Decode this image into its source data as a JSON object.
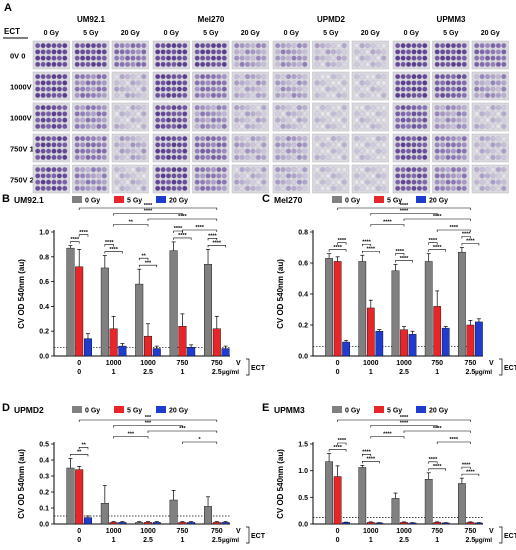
{
  "panel_a": {
    "letter": "A",
    "ect_label": "ECT",
    "rows": [
      "0V 0",
      "1000V 1",
      "1000V 2.5",
      "750V 1",
      "750V 2.5"
    ],
    "cell_lines": [
      "UM92.1",
      "Mel270",
      "UPMD2",
      "UPMM3"
    ],
    "doses": [
      "0 Gy",
      "5 Gy",
      "20 Gy"
    ],
    "plate_colors": {
      "stain_dark": "#5b3d8f",
      "stain_mid": "#8f78b8",
      "stain_light": "#c9c1d8",
      "plate_bg": "#d9d9de",
      "well_empty": "#e6e6ea"
    },
    "stain_intensity": [
      [
        [
          0.95,
          0.9,
          0.55
        ],
        [
          0.95,
          0.92,
          0.35
        ],
        [
          0.35,
          0.2,
          0.15
        ],
        [
          0.95,
          0.9,
          0.6
        ]
      ],
      [
        [
          0.9,
          0.5,
          0.2
        ],
        [
          0.92,
          0.55,
          0.25
        ],
        [
          0.3,
          0.1,
          0.1
        ],
        [
          0.92,
          0.75,
          0.35
        ]
      ],
      [
        [
          0.85,
          0.45,
          0.15
        ],
        [
          0.85,
          0.4,
          0.2
        ],
        [
          0.2,
          0.1,
          0.1
        ],
        [
          0.7,
          0.35,
          0.15
        ]
      ],
      [
        [
          0.9,
          0.55,
          0.25
        ],
        [
          0.9,
          0.6,
          0.25
        ],
        [
          0.3,
          0.12,
          0.1
        ],
        [
          0.85,
          0.5,
          0.2
        ]
      ],
      [
        [
          0.85,
          0.4,
          0.15
        ],
        [
          0.9,
          0.5,
          0.2
        ],
        [
          0.25,
          0.1,
          0.1
        ],
        [
          0.8,
          0.45,
          0.2
        ]
      ]
    ]
  },
  "legend": {
    "items": [
      "0 Gy",
      "5 Gy",
      "20 Gy"
    ]
  },
  "colors": {
    "g0": "#808080",
    "g5": "#e8262a",
    "g20": "#1f3bd0"
  },
  "axis": {
    "ylabel": "CV OD 540nm (au)",
    "x_top": [
      "0",
      "1000",
      "1000",
      "750",
      "750"
    ],
    "x_bottom": [
      "0",
      "1",
      "2.5",
      "1",
      "2.5"
    ],
    "unit_top": "V",
    "unit_bottom": "µg/ml",
    "ect_label": "ECT"
  },
  "chart_data": [
    {
      "letter": "B",
      "title": "UM92.1",
      "type": "bar",
      "categories": [
        "0 V / 0 µg/ml",
        "1000 V / 1 µg/ml",
        "1000 V / 2.5 µg/ml",
        "750 V / 1 µg/ml",
        "750 V / 2.5 µg/ml"
      ],
      "ylim": [
        0,
        1.0
      ],
      "yticks": [
        "0.0",
        "0.2",
        "0.4",
        "0.6",
        "0.8",
        "1.0"
      ],
      "tick_values": [
        0,
        0.2,
        0.4,
        0.6,
        0.8,
        1.0
      ],
      "threshold": 0.07,
      "series": [
        {
          "name": "0 Gy",
          "values": [
            0.87,
            0.71,
            0.58,
            0.85,
            0.74
          ],
          "errors": [
            0.02,
            0.1,
            0.12,
            0.07,
            0.12
          ]
        },
        {
          "name": "5 Gy",
          "values": [
            0.72,
            0.22,
            0.16,
            0.24,
            0.22
          ],
          "errors": [
            0.14,
            0.1,
            0.1,
            0.1,
            0.1
          ]
        },
        {
          "name": "20 Gy",
          "values": [
            0.14,
            0.08,
            0.06,
            0.07,
            0.06
          ],
          "errors": [
            0.04,
            0.02,
            0.02,
            0.02,
            0.02
          ]
        }
      ],
      "sig_top": [
        {
          "x1": 0,
          "x2": 4,
          "label": "****"
        },
        {
          "x1": 1,
          "x2": 3,
          "label": "****"
        },
        {
          "x1": 2,
          "x2": 4,
          "label": "****"
        },
        {
          "x1": 1,
          "x2": 2,
          "label": "**"
        },
        {
          "x1": 3,
          "x2": 4,
          "label": "****"
        }
      ],
      "sig_local": [
        {
          "group": 0,
          "a": 0,
          "b": 1,
          "label": "****"
        },
        {
          "group": 0,
          "a": 1,
          "b": 2,
          "label": "****"
        },
        {
          "group": 1,
          "a": 0,
          "b": 2,
          "label": "****"
        },
        {
          "group": 1,
          "a": 0,
          "b": 1,
          "label": "****"
        },
        {
          "group": 2,
          "a": 0,
          "b": 2,
          "label": "***"
        },
        {
          "group": 2,
          "a": 0,
          "b": 1,
          "label": "**"
        },
        {
          "group": 3,
          "a": 0,
          "b": 2,
          "label": "****"
        },
        {
          "group": 3,
          "a": 0,
          "b": 1,
          "label": "****"
        },
        {
          "group": 4,
          "a": 0,
          "b": 2,
          "label": "****"
        },
        {
          "group": 4,
          "a": 0,
          "b": 1,
          "label": "****"
        }
      ]
    },
    {
      "letter": "C",
      "title": "Mel270",
      "type": "bar",
      "categories": [
        "0 V / 0 µg/ml",
        "1000 V / 1 µg/ml",
        "1000 V / 2.5 µg/ml",
        "750 V / 1 µg/ml",
        "750 V / 2.5 µg/ml"
      ],
      "ylim": [
        0,
        0.8
      ],
      "yticks": [
        "0.0",
        "0.2",
        "0.4",
        "0.6",
        "0.8"
      ],
      "tick_values": [
        0,
        0.2,
        0.4,
        0.6,
        0.8
      ],
      "threshold": 0.06,
      "series": [
        {
          "name": "0 Gy",
          "values": [
            0.63,
            0.61,
            0.55,
            0.61,
            0.67
          ],
          "errors": [
            0.03,
            0.04,
            0.04,
            0.05,
            0.03
          ]
        },
        {
          "name": "5 Gy",
          "values": [
            0.61,
            0.31,
            0.17,
            0.32,
            0.2
          ],
          "errors": [
            0.03,
            0.05,
            0.02,
            0.1,
            0.03
          ]
        },
        {
          "name": "20 Gy",
          "values": [
            0.09,
            0.16,
            0.14,
            0.18,
            0.22
          ],
          "errors": [
            0.01,
            0.01,
            0.02,
            0.01,
            0.02
          ]
        }
      ],
      "sig_top": [
        {
          "x1": 0,
          "x2": 4,
          "label": "****"
        },
        {
          "x1": 1,
          "x2": 3,
          "label": "****"
        },
        {
          "x1": 2,
          "x2": 4,
          "label": "****"
        },
        {
          "x1": 1,
          "x2": 2,
          "label": "****"
        },
        {
          "x1": 3,
          "x2": 4,
          "label": "****"
        }
      ],
      "sig_local": [
        {
          "group": 0,
          "a": 0,
          "b": 2,
          "label": "****"
        },
        {
          "group": 0,
          "a": 1,
          "b": 2,
          "label": "****"
        },
        {
          "group": 1,
          "a": 0,
          "b": 2,
          "label": "****"
        },
        {
          "group": 1,
          "a": 0,
          "b": 1,
          "label": "****"
        },
        {
          "group": 2,
          "a": 0,
          "b": 2,
          "label": "****"
        },
        {
          "group": 2,
          "a": 0,
          "b": 1,
          "label": "****"
        },
        {
          "group": 3,
          "a": 0,
          "b": 2,
          "label": "****"
        },
        {
          "group": 3,
          "a": 0,
          "b": 1,
          "label": "****"
        },
        {
          "group": 4,
          "a": 0,
          "b": 2,
          "label": "****"
        },
        {
          "group": 4,
          "a": 0,
          "b": 1,
          "label": "****"
        }
      ]
    },
    {
      "letter": "D",
      "title": "UPMD2",
      "type": "bar",
      "categories": [
        "0 V / 0 µg/ml",
        "1000 V / 1 µg/ml",
        "1000 V / 2.5 µg/ml",
        "750 V / 1 µg/ml",
        "750 V / 2.5 µg/ml"
      ],
      "ylim": [
        0,
        0.5
      ],
      "yticks": [
        "0.0",
        "0.1",
        "0.2",
        "0.3",
        "0.4",
        "0.5"
      ],
      "tick_values": [
        0,
        0.1,
        0.2,
        0.3,
        0.4,
        0.5
      ],
      "threshold": 0.05,
      "series": [
        {
          "name": "0 Gy",
          "values": [
            0.35,
            0.13,
            0.01,
            0.15,
            0.11
          ],
          "errors": [
            0.06,
            0.11,
            0.005,
            0.06,
            0.06
          ]
        },
        {
          "name": "5 Gy",
          "values": [
            0.34,
            0.01,
            0.01,
            0.01,
            0.01
          ],
          "errors": [
            0.02,
            0.005,
            0.005,
            0.005,
            0.005
          ]
        },
        {
          "name": "20 Gy",
          "values": [
            0.04,
            0.01,
            0.01,
            0.01,
            0.01
          ],
          "errors": [
            0.01,
            0.005,
            0.005,
            0.005,
            0.005
          ]
        }
      ],
      "sig_top": [
        {
          "x1": 0,
          "x2": 4,
          "label": "***"
        },
        {
          "x1": 1,
          "x2": 3,
          "label": "***"
        },
        {
          "x1": 2,
          "x2": 4,
          "label": "***"
        },
        {
          "x1": 1,
          "x2": 2,
          "label": "***"
        },
        {
          "x1": 3,
          "x2": 4,
          "label": "*"
        }
      ],
      "sig_local": [
        {
          "group": 0,
          "a": 0,
          "b": 2,
          "label": "**"
        },
        {
          "group": 0,
          "a": 1,
          "b": 2,
          "label": "**"
        }
      ]
    },
    {
      "letter": "E",
      "title": "UPMM3",
      "type": "bar",
      "categories": [
        "0 V / 0 µg/ml",
        "1000 V / 1 µg/ml",
        "1000 V / 2.5 µg/ml",
        "750 V / 1 µg/ml",
        "750 V / 2.5 µg/ml"
      ],
      "ylim": [
        0,
        1.5
      ],
      "yticks": [
        "0.0",
        "0.5",
        "1.0",
        "1.5"
      ],
      "tick_values": [
        0,
        0.5,
        1.0,
        1.5
      ],
      "threshold": 0.12,
      "series": [
        {
          "name": "0 Gy",
          "values": [
            1.17,
            1.06,
            0.48,
            0.84,
            0.76
          ],
          "errors": [
            0.15,
            0.04,
            0.1,
            0.12,
            0.1
          ]
        },
        {
          "name": "5 Gy",
          "values": [
            0.89,
            0.03,
            0.03,
            0.03,
            0.03
          ],
          "errors": [
            0.2,
            0.01,
            0.01,
            0.01,
            0.01
          ]
        },
        {
          "name": "20 Gy",
          "values": [
            0.03,
            0.02,
            0.02,
            0.02,
            0.02
          ],
          "errors": [
            0.005,
            0.005,
            0.005,
            0.005,
            0.005
          ]
        }
      ],
      "sig_top": [
        {
          "x1": 0,
          "x2": 4,
          "label": "****"
        },
        {
          "x1": 1,
          "x2": 3,
          "label": "****"
        },
        {
          "x1": 2,
          "x2": 4,
          "label": "****"
        },
        {
          "x1": 1,
          "x2": 2,
          "label": "****"
        },
        {
          "x1": 3,
          "x2": 4,
          "label": "****"
        }
      ],
      "sig_local": [
        {
          "group": 0,
          "a": 0,
          "b": 2,
          "label": "****"
        },
        {
          "group": 0,
          "a": 1,
          "b": 2,
          "label": "****"
        },
        {
          "group": 1,
          "a": 0,
          "b": 2,
          "label": "****"
        },
        {
          "group": 1,
          "a": 0,
          "b": 1,
          "label": "****"
        },
        {
          "group": 3,
          "a": 0,
          "b": 2,
          "label": "****"
        },
        {
          "group": 3,
          "a": 0,
          "b": 1,
          "label": "****"
        },
        {
          "group": 4,
          "a": 0,
          "b": 2,
          "label": "****"
        },
        {
          "group": 4,
          "a": 0,
          "b": 1,
          "label": "****"
        }
      ]
    }
  ]
}
